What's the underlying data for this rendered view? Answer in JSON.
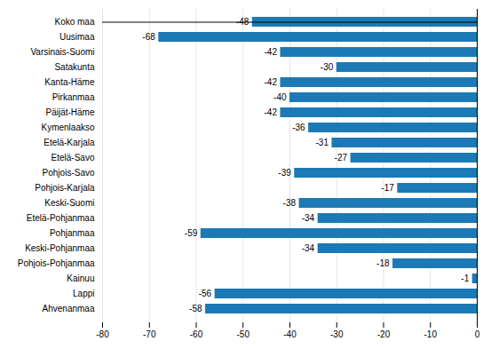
{
  "chart_data": {
    "type": "bar",
    "orientation": "horizontal",
    "categories": [
      "Koko maa",
      "Uusimaa",
      "Varsinais-Suomi",
      "Satakunta",
      "Kanta-Häme",
      "Pirkanmaa",
      "Päijät-Häme",
      "Kymenlaakso",
      "Etelä-Karjala",
      "Etelä-Savo",
      "Pohjois-Savo",
      "Pohjois-Karjala",
      "Keski-Suomi",
      "Etelä-Pohjanmaa",
      "Pohjanmaa",
      "Keski-Pohjanmaa",
      "Pohjois-Pohjanmaa",
      "Kainuu",
      "Lappi",
      "Ahvenanmaa"
    ],
    "values": [
      -48,
      -68,
      -42,
      -30,
      -42,
      -40,
      -42,
      -36,
      -31,
      -27,
      -39,
      -17,
      -38,
      -34,
      -59,
      -34,
      -18,
      -1,
      -56,
      -58
    ],
    "color": "#1b7ab5",
    "xlim": [
      -80,
      0
    ],
    "xticks": [
      -80,
      -70,
      -60,
      -50,
      -40,
      -30,
      -20,
      -10,
      0
    ],
    "grid": true,
    "data_labels": true
  }
}
